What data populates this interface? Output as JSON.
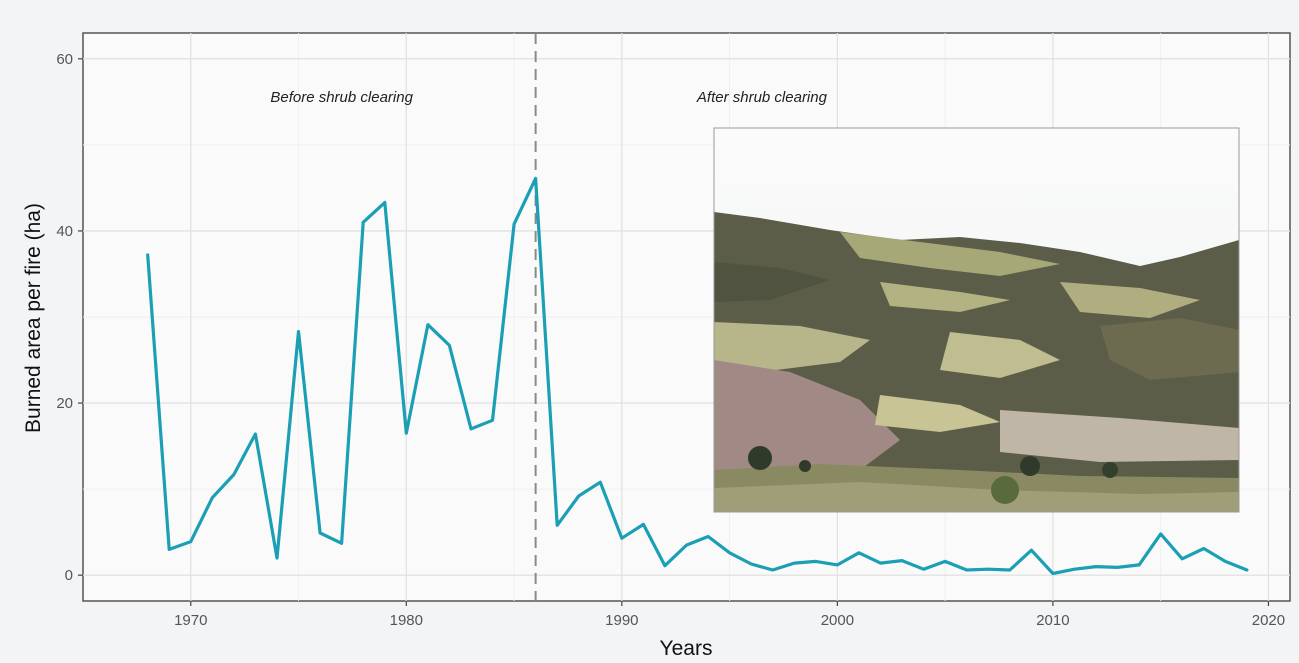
{
  "chart_data": {
    "type": "line",
    "title": "",
    "xlabel": "Years",
    "ylabel": "Burned area per fire (ha)",
    "xlim": [
      1965,
      2021
    ],
    "ylim": [
      -3,
      63
    ],
    "x_ticks": [
      1970,
      1980,
      1990,
      2000,
      2010,
      2020
    ],
    "y_ticks": [
      0,
      20,
      40,
      60
    ],
    "grid": true,
    "legend": "none",
    "line_color": "#1a9fb5",
    "divider_x": 1986,
    "annotations": [
      {
        "text": "Before shrub clearing",
        "x": 1977,
        "y": 55
      },
      {
        "text": "After shrub clearing",
        "x": 1996.5,
        "y": 55
      }
    ],
    "inset_image": "photo-of-hillside-landscape-with-shrubland-and-cleared-pasture",
    "series": [
      {
        "x": [
          1968,
          1969,
          1970,
          1971,
          1972,
          1973,
          1974,
          1975,
          1976,
          1977,
          1978,
          1979,
          1980,
          1981,
          1982,
          1983,
          1984,
          1985,
          1986,
          1987,
          1988,
          1989,
          1990,
          1991,
          1992,
          1993,
          1994,
          1995,
          1996,
          1997,
          1998,
          1999,
          2000,
          2001,
          2002,
          2003,
          2004,
          2005,
          2006,
          2007,
          2008,
          2009,
          2010,
          2011,
          2012,
          2013,
          2014,
          2015,
          2016,
          2017,
          2018,
          2019
        ],
        "values": [
          37.2,
          3.0,
          3.9,
          9.0,
          11.7,
          16.4,
          2.0,
          28.3,
          4.9,
          3.7,
          41.0,
          43.3,
          16.5,
          29.1,
          26.7,
          17.0,
          18.0,
          40.8,
          46.1,
          5.8,
          9.2,
          10.8,
          4.3,
          5.9,
          1.1,
          3.5,
          4.5,
          2.6,
          1.3,
          0.6,
          1.4,
          1.6,
          1.2,
          2.6,
          1.4,
          1.7,
          0.7,
          1.6,
          0.6,
          0.7,
          0.6,
          2.9,
          0.2,
          0.7,
          1.0,
          0.9,
          1.2,
          4.8,
          1.9,
          3.1,
          1.6,
          0.6
        ]
      }
    ]
  }
}
